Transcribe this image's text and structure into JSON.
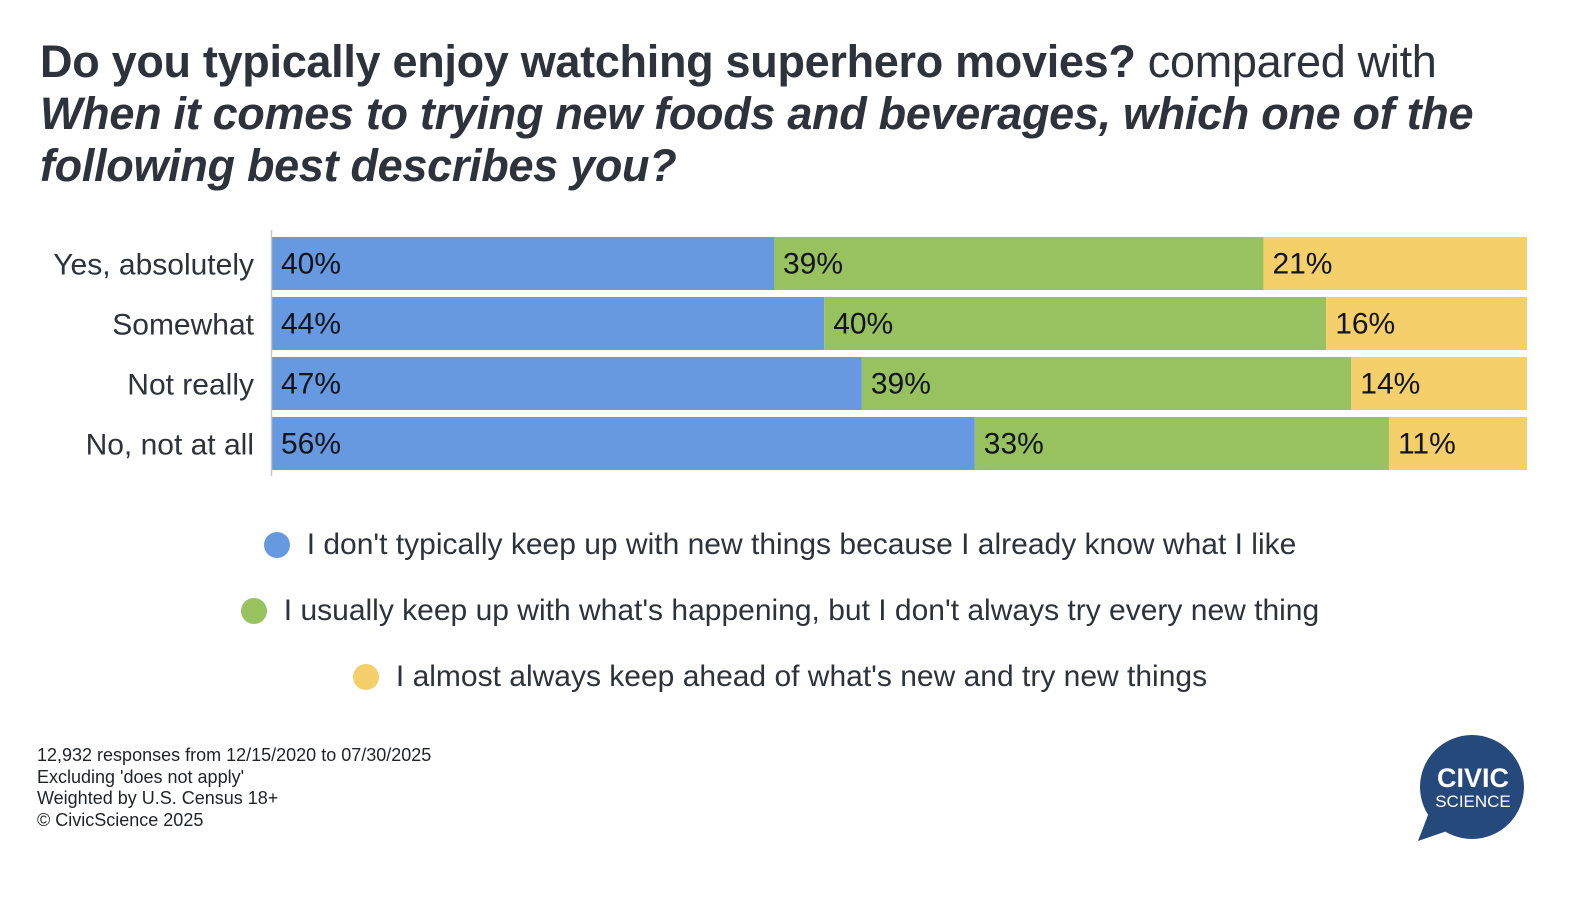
{
  "title": {
    "q1": "Do you typically enjoy watching superhero movies?",
    "connector": "compared with",
    "q2": "When it comes to trying new foods and beverages, which one of the following best describes you?"
  },
  "chart_data": {
    "type": "bar",
    "orientation": "horizontal",
    "stacked": true,
    "normalized": true,
    "categories": [
      "Yes, absolutely",
      "Somewhat",
      "Not really",
      "No, not at all"
    ],
    "series": [
      {
        "name": "I don't typically keep up with new things because I already know what I like",
        "color": "#6699e0",
        "values": [
          40,
          44,
          47,
          56
        ]
      },
      {
        "name": "I usually keep up with what's happening, but I don't always try every new thing",
        "color": "#98c160",
        "values": [
          39,
          40,
          39,
          33
        ]
      },
      {
        "name": "I almost always keep ahead of what's new and try new things",
        "color": "#f5cf6a",
        "values": [
          21,
          16,
          14,
          11
        ]
      }
    ],
    "value_suffix": "%",
    "xlim": [
      0,
      100
    ],
    "legend_position": "bottom",
    "grid": false
  },
  "footnotes": [
    "12,932 responses from 12/15/2020 to 07/30/2025",
    "Excluding 'does not apply'",
    "Weighted by U.S. Census 18+",
    "© CivicScience 2025"
  ],
  "logo": {
    "line1": "CIVIC",
    "line2": "SCIENCE",
    "color": "#24497a"
  }
}
